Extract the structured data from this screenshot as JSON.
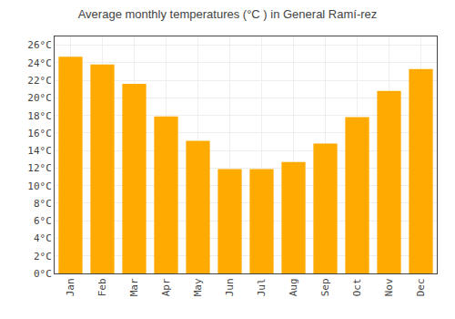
{
  "chart_data": {
    "type": "bar",
    "title": "Average monthly temperatures (°C ) in General Ramí-rez",
    "categories": [
      "Jan",
      "Feb",
      "Mar",
      "Apr",
      "May",
      "Jun",
      "Jul",
      "Aug",
      "Sep",
      "Oct",
      "Nov",
      "Dec"
    ],
    "values": [
      24.7,
      23.8,
      21.6,
      17.9,
      15.1,
      11.9,
      11.9,
      12.7,
      14.8,
      17.8,
      20.8,
      23.3
    ],
    "color": "#FFAA00",
    "ylim": [
      0,
      27
    ],
    "yticks": [
      {
        "value": 0,
        "label": "0°C"
      },
      {
        "value": 2,
        "label": "2°C"
      },
      {
        "value": 4,
        "label": "4°C"
      },
      {
        "value": 6,
        "label": "6°C"
      },
      {
        "value": 8,
        "label": "8°C"
      },
      {
        "value": 10,
        "label": "10°C"
      },
      {
        "value": 12,
        "label": "12°C"
      },
      {
        "value": 14,
        "label": "14°C"
      },
      {
        "value": 16,
        "label": "16°C"
      },
      {
        "value": 18,
        "label": "18°C"
      },
      {
        "value": 20,
        "label": "20°C"
      },
      {
        "value": 22,
        "label": "22°C"
      },
      {
        "value": 24,
        "label": "24°C"
      },
      {
        "value": 26,
        "label": "26°C"
      }
    ],
    "grid": true
  }
}
